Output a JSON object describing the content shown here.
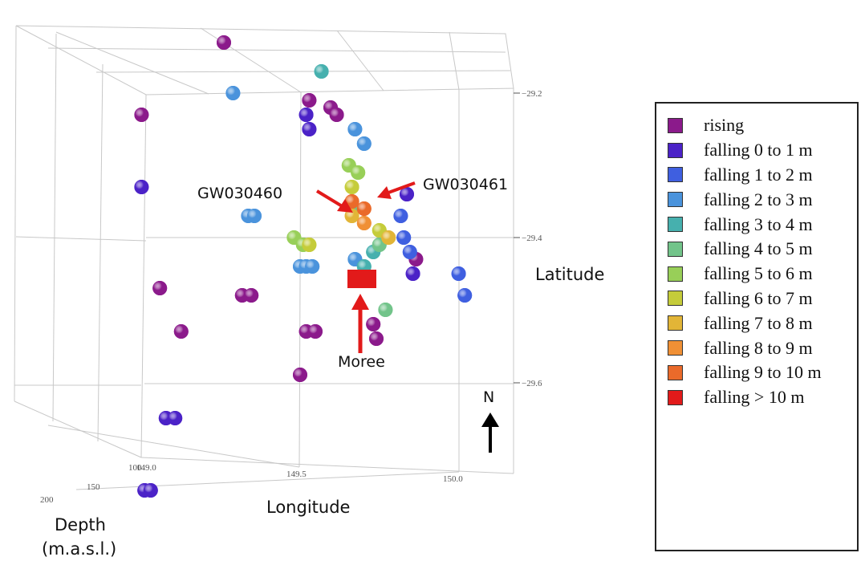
{
  "chart_data": {
    "type": "scatter",
    "projection": "3d",
    "title": "",
    "xlabel": "Longitude",
    "ylabel": "Latitude",
    "zlabel": "Depth (m.a.s.l.)",
    "xlabel_text": "Longitude",
    "ylabel_text": "Latitude",
    "zlabel_line1": "Depth",
    "zlabel_line2": "(m.a.s.l.)",
    "x_ticks": [
      "149.0",
      "149.5",
      "150.0"
    ],
    "y_ticks": [
      "−29.2",
      "−29.4",
      "−29.6"
    ],
    "z_ticks": [
      "200",
      "150",
      "100"
    ],
    "xlim": [
      149.0,
      150.1
    ],
    "ylim": [
      -29.68,
      -29.18
    ],
    "grid": true,
    "legend_position": "right",
    "legend": [
      {
        "label": "rising",
        "color": "#8b1a8b"
      },
      {
        "label": "falling 0 to 1 m",
        "color": "#4b22c7"
      },
      {
        "label": "falling 1 to 2 m",
        "color": "#3f5fe0"
      },
      {
        "label": "falling 2 to 3 m",
        "color": "#4a93dc"
      },
      {
        "label": "falling 3 to 4 m",
        "color": "#46b0ae"
      },
      {
        "label": "falling 4 to 5 m",
        "color": "#72c48a"
      },
      {
        "label": "falling 5 to 6 m",
        "color": "#98cf58"
      },
      {
        "label": "falling 6 to 7 m",
        "color": "#c5cc3a"
      },
      {
        "label": "falling 7 to 8 m",
        "color": "#e2b537"
      },
      {
        "label": "falling 8 to 9 m",
        "color": "#f09035"
      },
      {
        "label": "falling 9 to 10 m",
        "color": "#ea6a2a"
      },
      {
        "label": "falling > 10 m",
        "color": "#e21a1a"
      }
    ],
    "series": [
      {
        "name": "rising",
        "color": "#8b1a8b",
        "points": [
          {
            "x": 149.25,
            "y": -29.13
          },
          {
            "x": 148.98,
            "y": -29.23
          },
          {
            "x": 149.53,
            "y": -29.21
          },
          {
            "x": 149.6,
            "y": -29.22
          },
          {
            "x": 149.62,
            "y": -29.23
          },
          {
            "x": 149.04,
            "y": -29.47
          },
          {
            "x": 149.31,
            "y": -29.48
          },
          {
            "x": 149.34,
            "y": -29.48
          },
          {
            "x": 149.11,
            "y": -29.53
          },
          {
            "x": 149.52,
            "y": -29.53
          },
          {
            "x": 149.55,
            "y": -29.53
          },
          {
            "x": 149.5,
            "y": -29.59
          },
          {
            "x": 149.74,
            "y": -29.52
          },
          {
            "x": 149.75,
            "y": -29.54
          },
          {
            "x": 149.88,
            "y": -29.43
          }
        ]
      },
      {
        "name": "falling 0 to 1 m",
        "color": "#4b22c7",
        "points": [
          {
            "x": 149.52,
            "y": -29.23
          },
          {
            "x": 149.53,
            "y": -29.25
          },
          {
            "x": 148.98,
            "y": -29.33
          },
          {
            "x": 149.85,
            "y": -29.34
          },
          {
            "x": 149.87,
            "y": -29.45
          },
          {
            "x": 149.06,
            "y": -29.65
          },
          {
            "x": 149.09,
            "y": -29.65
          },
          {
            "x": 148.99,
            "y": -29.75
          },
          {
            "x": 149.01,
            "y": -29.75
          }
        ]
      },
      {
        "name": "falling 1 to 2 m",
        "color": "#3f5fe0",
        "points": [
          {
            "x": 149.83,
            "y": -29.37
          },
          {
            "x": 149.84,
            "y": -29.4
          },
          {
            "x": 149.86,
            "y": -29.42
          },
          {
            "x": 150.02,
            "y": -29.45
          },
          {
            "x": 150.04,
            "y": -29.48
          }
        ]
      },
      {
        "name": "falling 2 to 3 m",
        "color": "#4a93dc",
        "points": [
          {
            "x": 149.28,
            "y": -29.2
          },
          {
            "x": 149.68,
            "y": -29.25
          },
          {
            "x": 149.71,
            "y": -29.27
          },
          {
            "x": 149.33,
            "y": -29.37
          },
          {
            "x": 149.35,
            "y": -29.37
          },
          {
            "x": 149.5,
            "y": -29.44
          },
          {
            "x": 149.52,
            "y": -29.44
          },
          {
            "x": 149.54,
            "y": -29.44
          },
          {
            "x": 149.68,
            "y": -29.43
          }
        ]
      },
      {
        "name": "falling 3 to 4 m",
        "color": "#46b0ae",
        "points": [
          {
            "x": 149.57,
            "y": -29.17
          },
          {
            "x": 149.71,
            "y": -29.44
          },
          {
            "x": 149.74,
            "y": -29.42
          }
        ]
      },
      {
        "name": "falling 4 to 5 m",
        "color": "#72c48a",
        "points": [
          {
            "x": 149.67,
            "y": -29.36
          },
          {
            "x": 149.76,
            "y": -29.41
          },
          {
            "x": 149.78,
            "y": -29.5
          }
        ]
      },
      {
        "name": "falling 5 to 6 m",
        "color": "#98cf58",
        "points": [
          {
            "x": 149.66,
            "y": -29.3
          },
          {
            "x": 149.69,
            "y": -29.31
          },
          {
            "x": 149.48,
            "y": -29.4
          },
          {
            "x": 149.51,
            "y": -29.41
          }
        ]
      },
      {
        "name": "falling 6 to 7 m",
        "color": "#c5cc3a",
        "points": [
          {
            "x": 149.67,
            "y": -29.33
          },
          {
            "x": 149.53,
            "y": -29.41
          },
          {
            "x": 149.76,
            "y": -29.39
          }
        ]
      },
      {
        "name": "falling 7 to 8 m",
        "color": "#e2b537",
        "points": [
          {
            "x": 149.79,
            "y": -29.4
          },
          {
            "x": 149.67,
            "y": -29.37
          }
        ]
      },
      {
        "name": "falling 8 to 9 m",
        "color": "#f09035",
        "points": [
          {
            "x": 149.71,
            "y": -29.38
          }
        ]
      },
      {
        "name": "falling 9 to 10 m",
        "color": "#ea6a2a",
        "points": [
          {
            "x": 149.67,
            "y": -29.35
          },
          {
            "x": 149.71,
            "y": -29.36
          }
        ]
      }
    ],
    "annotations": [
      {
        "text": "GW030460",
        "points_to": {
          "x": 149.66,
          "y": -29.35
        }
      },
      {
        "text": "GW030461",
        "points_to": {
          "x": 149.72,
          "y": -29.34
        }
      },
      {
        "text": "Moree",
        "marker": "red square",
        "points_to": {
          "x": 149.67,
          "y": -29.47
        }
      }
    ],
    "north_label": "N"
  }
}
